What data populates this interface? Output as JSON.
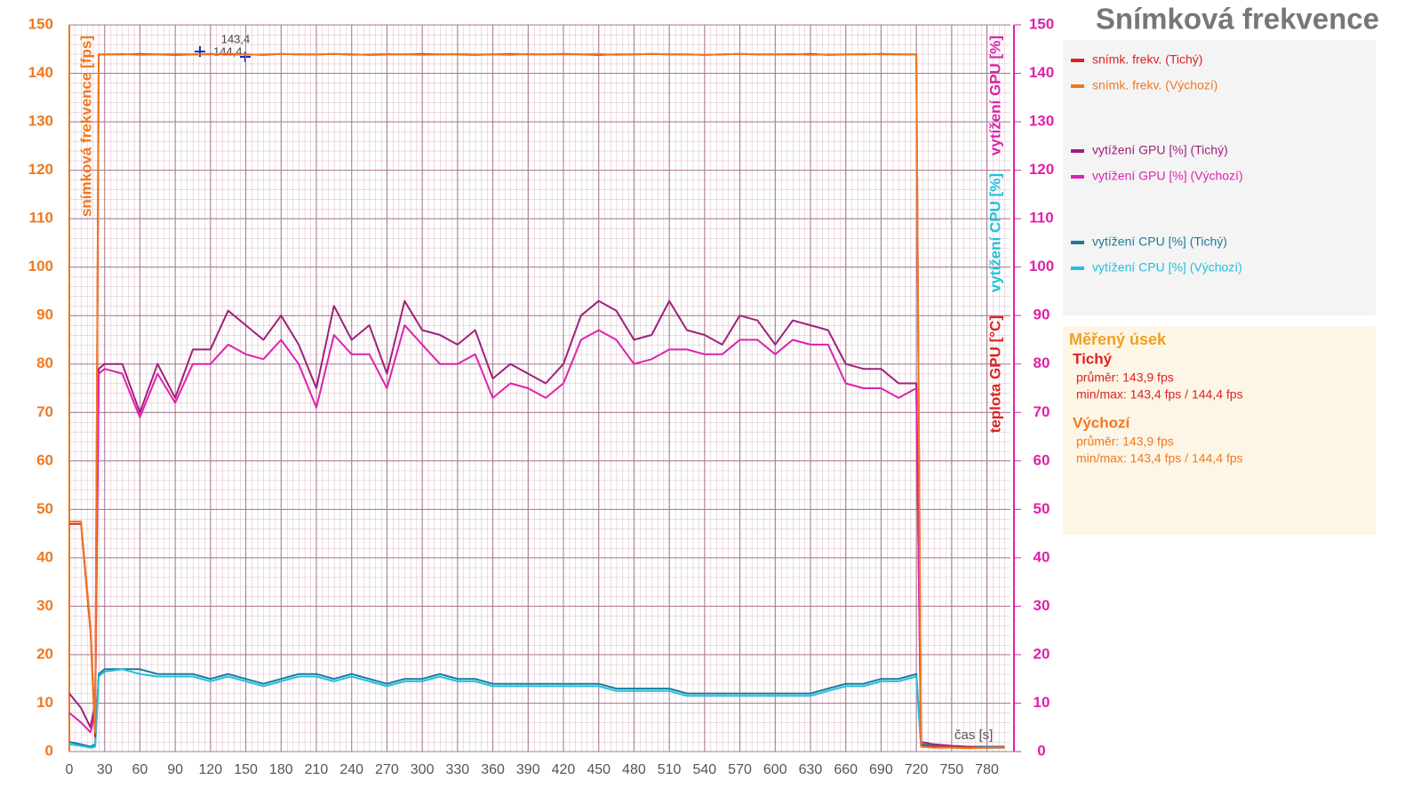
{
  "chart_data": {
    "type": "line",
    "title": "Snímková frekvence",
    "y_label": {
      "text": "snímková frekvence [fps]",
      "color": "#f07820"
    },
    "y2_labels": [
      {
        "text": "vytížení GPU [%]",
        "color": "#e020a8"
      },
      {
        "text": "vytížení CPU [%]",
        "color": "#20c0e0"
      },
      {
        "text": "teplota GPU [°C]",
        "color": "#e02020"
      }
    ],
    "annotations": [
      "143,4",
      "144,4",
      "čas [s]"
    ],
    "x": [
      0,
      10,
      18,
      22,
      25,
      30,
      45,
      60,
      75,
      90,
      105,
      120,
      135,
      150,
      165,
      180,
      195,
      210,
      225,
      240,
      255,
      270,
      285,
      300,
      315,
      330,
      345,
      360,
      375,
      390,
      405,
      420,
      435,
      450,
      465,
      480,
      495,
      510,
      525,
      540,
      555,
      570,
      585,
      600,
      615,
      630,
      645,
      660,
      675,
      690,
      705,
      720,
      724,
      735,
      750,
      765,
      780,
      795
    ],
    "xlim": [
      0,
      800
    ],
    "xticks": [
      0,
      30,
      60,
      90,
      120,
      150,
      180,
      210,
      240,
      270,
      300,
      330,
      360,
      390,
      420,
      450,
      480,
      510,
      540,
      570,
      600,
      630,
      660,
      690,
      720,
      750,
      780
    ],
    "ylim": [
      0,
      150
    ],
    "yticks": [
      0,
      10,
      20,
      30,
      40,
      50,
      60,
      70,
      80,
      90,
      100,
      110,
      120,
      130,
      140,
      150
    ],
    "y2lim": [
      0,
      150
    ],
    "y2ticks": [
      0,
      10,
      20,
      30,
      40,
      50,
      60,
      70,
      80,
      90,
      100,
      110,
      120,
      130,
      140,
      150
    ],
    "grid": true,
    "series": [
      {
        "name": "snímk. frekv. (Tichý)",
        "color": "#e02020",
        "values": [
          47,
          47,
          25,
          3,
          143.9,
          143.9,
          143.9,
          144,
          143.9,
          143.8,
          143.9,
          144,
          143.9,
          143.9,
          143.8,
          144,
          143.9,
          143.9,
          144,
          143.9,
          143.8,
          143.9,
          143.9,
          144,
          143.9,
          143.9,
          143.8,
          143.9,
          144,
          143.9,
          143.9,
          144,
          143.9,
          143.8,
          143.9,
          143.9,
          144,
          143.9,
          143.9,
          143.8,
          143.9,
          144,
          143.9,
          143.9,
          143.9,
          144,
          143.8,
          143.9,
          143.9,
          144,
          143.9,
          143.9,
          1.2,
          1,
          0.9,
          0.9,
          0.8,
          0.9
        ]
      },
      {
        "name": "snímk. frekv. (Výchozí)",
        "color": "#f07820",
        "values": [
          47.5,
          47.5,
          26,
          4,
          143.8,
          143.9,
          144,
          143.8,
          143.9,
          144,
          143.9,
          143.9,
          144.1,
          143.8,
          143.9,
          144,
          143.9,
          143.9,
          144,
          143.8,
          143.9,
          144,
          143.9,
          143.8,
          143.9,
          144,
          143.9,
          143.9,
          143.8,
          144,
          143.9,
          143.9,
          143.9,
          144,
          143.8,
          143.9,
          144,
          143.9,
          143.9,
          143.8,
          143.9,
          144,
          143.9,
          143.9,
          144,
          143.8,
          143.9,
          143.9,
          144,
          143.9,
          143.9,
          143.9,
          1,
          0.8,
          0.8,
          0.7,
          0.8,
          0.8
        ]
      },
      {
        "name": "vytížení GPU [%] (Tichý)",
        "color": "#a0207a",
        "values": [
          12,
          9,
          5,
          10,
          79,
          80,
          80,
          70,
          80,
          73,
          83,
          83,
          91,
          88,
          85,
          90,
          84,
          75,
          92,
          85,
          88,
          78,
          93,
          87,
          86,
          84,
          87,
          77,
          80,
          78,
          76,
          80,
          90,
          93,
          91,
          85,
          86,
          93,
          87,
          86,
          84,
          90,
          89,
          84,
          89,
          88,
          87,
          80,
          79,
          79,
          76,
          76,
          2,
          1.5,
          1.2,
          1,
          1,
          1
        ]
      },
      {
        "name": "vytížení GPU [%] (Výchozí)",
        "color": "#e020b0",
        "values": [
          8,
          6,
          4,
          8,
          78,
          79,
          78,
          69,
          78,
          72,
          80,
          80,
          84,
          82,
          81,
          85,
          80,
          71,
          86,
          82,
          82,
          75,
          88,
          84,
          80,
          80,
          82,
          73,
          76,
          75,
          73,
          76,
          85,
          87,
          85,
          80,
          81,
          83,
          83,
          82,
          82,
          85,
          85,
          82,
          85,
          84,
          84,
          76,
          75,
          75,
          73,
          75,
          1.5,
          1.2,
          1,
          1,
          0.8,
          0.8
        ]
      },
      {
        "name": "vytížení CPU [%] (Tichý)",
        "color": "#1a7a9a",
        "values": [
          2,
          1.5,
          1,
          1.5,
          16,
          17,
          17,
          17,
          16,
          16,
          16,
          15,
          16,
          15,
          14,
          15,
          16,
          16,
          15,
          16,
          15,
          14,
          15,
          15,
          16,
          15,
          15,
          14,
          14,
          14,
          14,
          14,
          14,
          14,
          13,
          13,
          13,
          13,
          12,
          12,
          12,
          12,
          12,
          12,
          12,
          12,
          13,
          14,
          14,
          15,
          15,
          16,
          1.5,
          1.2,
          1,
          1,
          1,
          1
        ]
      },
      {
        "name": "vytížení CPU [%] (Výchozí)",
        "color": "#20c0e0",
        "values": [
          1.5,
          1.2,
          0.8,
          1,
          15.5,
          16.5,
          17,
          16,
          15.5,
          15.5,
          15.5,
          14.5,
          15.5,
          14.5,
          13.5,
          14.5,
          15.5,
          15.5,
          14.5,
          15.5,
          14.5,
          13.5,
          14.5,
          14.5,
          15.5,
          14.5,
          14.5,
          13.5,
          13.5,
          13.5,
          13.5,
          13.5,
          13.5,
          13.5,
          12.5,
          12.5,
          12.5,
          12.5,
          11.5,
          11.5,
          11.5,
          11.5,
          11.5,
          11.5,
          11.5,
          11.5,
          12.5,
          13.5,
          13.5,
          14.5,
          14.5,
          15.5,
          1.2,
          1,
          0.8,
          0.8,
          0.8,
          0.8
        ]
      }
    ],
    "summary": {
      "title": "Měřený úsek",
      "groups": [
        {
          "name": "Tichý",
          "color": "#e02020",
          "lines": [
            "průměr: 143,9 fps",
            "min/max: 143,4 fps / 144,4 fps"
          ]
        },
        {
          "name": "Výchozí",
          "color": "#f07820",
          "lines": [
            "průměr: 143,9 fps",
            "min/max: 143,4 fps / 144,4 fps"
          ]
        }
      ]
    }
  }
}
